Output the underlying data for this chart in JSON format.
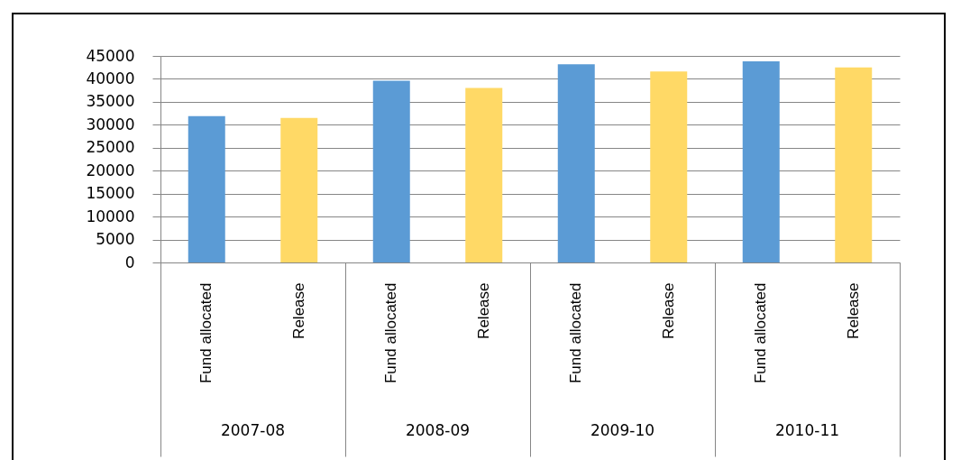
{
  "chart_data": {
    "type": "bar",
    "categories": [
      "Fund allocated",
      "Release",
      "Fund allocated",
      "Release",
      "Fund allocated",
      "Release",
      "Fund allocated",
      "Release"
    ],
    "values": [
      31900,
      31500,
      39600,
      38000,
      43200,
      41600,
      43800,
      42500
    ],
    "colors": [
      "#5b9bd5",
      "#ffd966",
      "#5b9bd5",
      "#ffd966",
      "#5b9bd5",
      "#ffd966",
      "#5b9bd5",
      "#ffd966"
    ],
    "annotations": [
      "2007-08",
      "2008-09",
      "2009-10",
      "2010-11"
    ],
    "ylim": [
      0,
      45000
    ],
    "yticks": [
      0,
      5000,
      10000,
      15000,
      20000,
      25000,
      30000,
      35000,
      40000,
      45000
    ],
    "grid": "y"
  }
}
